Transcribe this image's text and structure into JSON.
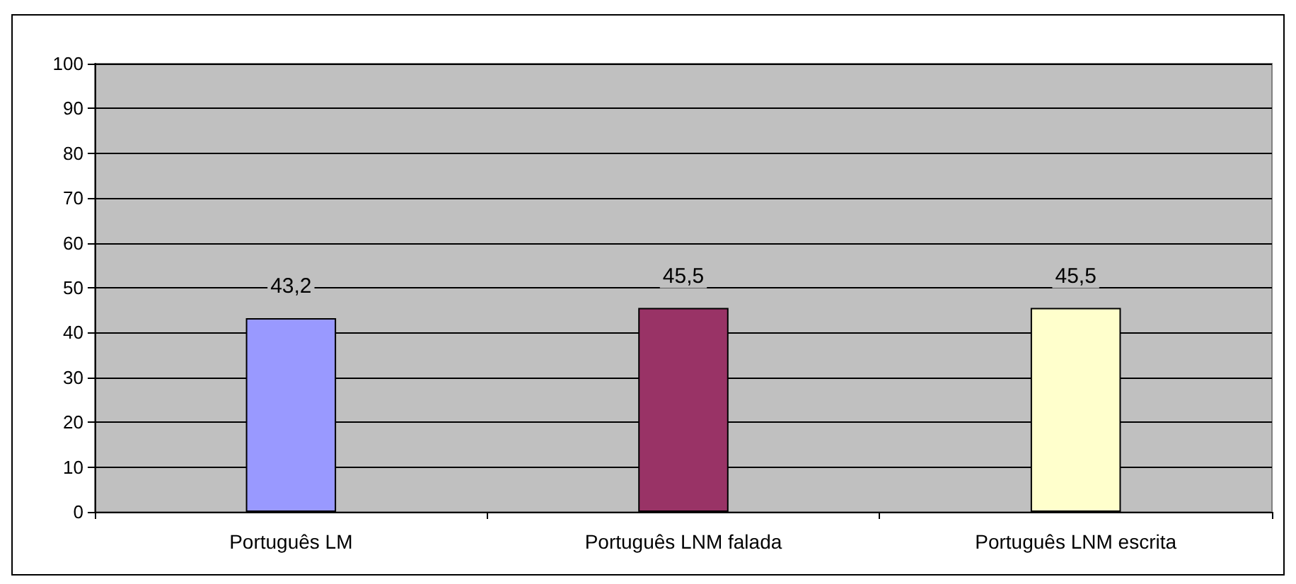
{
  "chart_data": {
    "type": "bar",
    "categories": [
      "Português LM",
      "Português LNM falada",
      "Português LNM escrita"
    ],
    "values": [
      43.2,
      45.5,
      45.5
    ],
    "colors": [
      "#9999ff",
      "#993366",
      "#ffffcc"
    ],
    "value_labels": [
      "43,2",
      "45,5",
      "45,5"
    ],
    "ylim": [
      0,
      100
    ],
    "yticks": [
      0,
      10,
      20,
      30,
      40,
      50,
      60,
      70,
      80,
      90,
      100
    ],
    "grid": "y"
  }
}
